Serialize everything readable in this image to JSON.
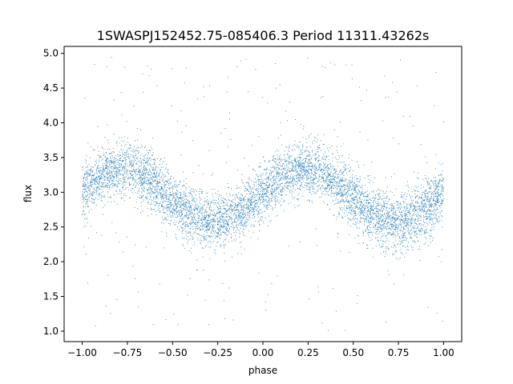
{
  "chart_data": {
    "type": "scatter",
    "title": "1SWASPJ152452.75-085406.3 Period 11311.43262s",
    "xlabel": "phase",
    "ylabel": "flux",
    "xlim": [
      -1.1,
      1.1
    ],
    "ylim": [
      0.85,
      5.1
    ],
    "xticks": [
      -1.0,
      -0.75,
      -0.5,
      -0.25,
      0.0,
      0.25,
      0.5,
      0.75,
      1.0
    ],
    "xtick_labels": [
      "−1.00",
      "−0.75",
      "−0.50",
      "−0.25",
      "0.00",
      "0.25",
      "0.50",
      "0.75",
      "1.00"
    ],
    "yticks": [
      1.0,
      1.5,
      2.0,
      2.5,
      3.0,
      3.5,
      4.0,
      4.5,
      5.0
    ],
    "ytick_labels": [
      "1.0",
      "1.5",
      "2.0",
      "2.5",
      "3.0",
      "3.5",
      "4.0",
      "4.5",
      "5.0"
    ],
    "marker_color": "#1f77b4",
    "grid": false,
    "legend": "none",
    "series": [
      {
        "x_range": [
          -1.0,
          1.0
        ],
        "model": "sinusoid",
        "mean_flux": 2.95,
        "amplitude": 0.38,
        "peak_phase": [
          -0.77,
          0.23
        ],
        "trough_phase": [
          -0.27,
          0.73
        ],
        "scatter_sigma": 0.2,
        "outlier_range": [
          1.0,
          5.0
        ]
      }
    ]
  }
}
